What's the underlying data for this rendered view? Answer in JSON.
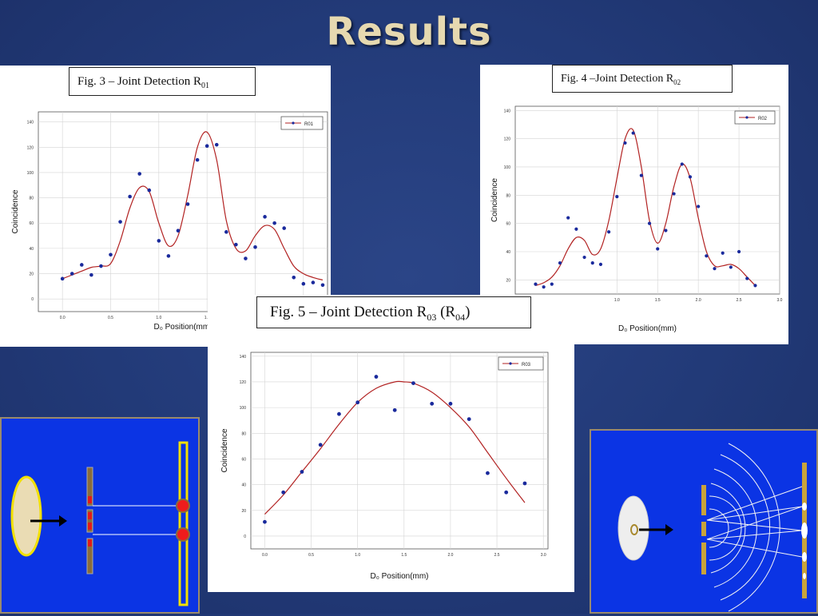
{
  "slide": {
    "title": "Results"
  },
  "chart_data": [
    {
      "id": "fig3",
      "type": "line",
      "caption": {
        "main": "Fig. 3 – Joint Detection R",
        "sub": "01",
        "tail": ""
      },
      "legend": "R01",
      "xlabel": "D₀ Position(mm)",
      "ylabel": "Coincidence",
      "xlim": [
        -0.25,
        2.75
      ],
      "ylim": [
        -10,
        148
      ],
      "xticks": [
        "0.0",
        "0.5",
        "1.0",
        "1.5",
        "2.0",
        "2.5"
      ],
      "yticks": [
        "0",
        "20",
        "40",
        "60",
        "80",
        "100",
        "120",
        "140"
      ],
      "grid": true,
      "legend_position": "top-right",
      "line_color": "#b22222",
      "point_color": "#1a2a9c",
      "points": {
        "x": [
          0.0,
          0.1,
          0.2,
          0.3,
          0.4,
          0.5,
          0.6,
          0.7,
          0.8,
          0.9,
          1.0,
          1.1,
          1.2,
          1.3,
          1.4,
          1.5,
          1.6,
          1.7,
          1.8,
          1.9,
          2.0,
          2.1,
          2.2,
          2.3,
          2.4,
          2.5,
          2.6,
          2.7
        ],
        "y": [
          16,
          20,
          27,
          19,
          26,
          35,
          61,
          81,
          99,
          86,
          46,
          34,
          54,
          75,
          110,
          121,
          122,
          53,
          43,
          32,
          41,
          65,
          60,
          56,
          17,
          12,
          13,
          11
        ]
      },
      "fit": {
        "x": [
          0.0,
          0.1,
          0.2,
          0.3,
          0.4,
          0.5,
          0.6,
          0.7,
          0.8,
          0.9,
          1.0,
          1.1,
          1.2,
          1.3,
          1.4,
          1.5,
          1.6,
          1.7,
          1.8,
          1.9,
          2.0,
          2.1,
          2.2,
          2.3,
          2.4,
          2.5,
          2.6,
          2.7
        ],
        "y": [
          16,
          19,
          22,
          25,
          26,
          28,
          46,
          72,
          88,
          85,
          60,
          42,
          50,
          82,
          120,
          132,
          110,
          62,
          40,
          38,
          50,
          58,
          55,
          40,
          26,
          20,
          17,
          15
        ]
      }
    },
    {
      "id": "fig4",
      "type": "line",
      "caption": {
        "main": "Fig. 4 –Joint Detection R",
        "sub": "02",
        "tail": ""
      },
      "legend": "R02",
      "xlabel": "D₀ Position(mm)",
      "ylabel": "Coincidence",
      "xlim": [
        -0.25,
        3.0
      ],
      "ylim": [
        10,
        143
      ],
      "xticks": [
        "",
        "",
        "",
        "",
        "1.0",
        "1.5",
        "2.0",
        "2.5",
        "3.0"
      ],
      "xtick_values": [
        -1,
        -1,
        -1,
        -1,
        1.0,
        1.5,
        2.0,
        2.5,
        3.0
      ],
      "yticks": [
        "20",
        "40",
        "60",
        "80",
        "100",
        "120",
        "140"
      ],
      "grid": true,
      "legend_position": "top-right",
      "line_color": "#b22222",
      "point_color": "#1a2a9c",
      "points": {
        "x": [
          0.0,
          0.1,
          0.2,
          0.3,
          0.4,
          0.5,
          0.6,
          0.7,
          0.8,
          0.9,
          1.0,
          1.1,
          1.2,
          1.3,
          1.4,
          1.5,
          1.6,
          1.7,
          1.8,
          1.9,
          2.0,
          2.1,
          2.2,
          2.3,
          2.4,
          2.5,
          2.6,
          2.7
        ],
        "y": [
          17,
          15,
          17,
          32,
          64,
          56,
          36,
          32,
          31,
          54,
          79,
          117,
          124,
          94,
          60,
          42,
          55,
          81,
          102,
          93,
          72,
          37,
          28,
          39,
          29,
          40,
          21,
          16
        ],
        "marker_size": 2.3
      },
      "fit": {
        "x": [
          0.0,
          0.1,
          0.2,
          0.3,
          0.4,
          0.5,
          0.6,
          0.7,
          0.8,
          0.9,
          1.0,
          1.1,
          1.2,
          1.3,
          1.4,
          1.5,
          1.6,
          1.7,
          1.8,
          1.9,
          2.0,
          2.1,
          2.2,
          2.3,
          2.4,
          2.5,
          2.6,
          2.7
        ],
        "y": [
          16,
          18,
          22,
          30,
          42,
          50,
          48,
          38,
          42,
          62,
          92,
          120,
          126,
          100,
          62,
          46,
          60,
          86,
          102,
          92,
          64,
          40,
          30,
          30,
          31,
          28,
          22,
          16
        ]
      }
    },
    {
      "id": "fig5",
      "type": "line",
      "caption": {
        "main": "Fig. 5 – Joint Detection R",
        "sub": "03",
        "tail": " (R",
        "sub2": "04",
        "tail2": ")"
      },
      "legend": "R03",
      "xlabel": "D₀ Position(mm)",
      "ylabel": "Coincidence",
      "xlim": [
        -0.15,
        3.05
      ],
      "ylim": [
        -10,
        143
      ],
      "xticks": [
        "0.0",
        "0.5",
        "1.0",
        "1.5",
        "2.0",
        "2.5",
        "3.0"
      ],
      "yticks": [
        "0",
        "20",
        "40",
        "60",
        "80",
        "100",
        "120",
        "140"
      ],
      "grid": true,
      "legend_position": "top-right",
      "line_color": "#b22222",
      "point_color": "#1a2a9c",
      "points": {
        "x": [
          0.0,
          0.2,
          0.4,
          0.6,
          0.8,
          1.0,
          1.2,
          1.4,
          1.6,
          1.8,
          2.0,
          2.2,
          2.4,
          2.6,
          2.8
        ],
        "y": [
          11,
          34,
          50,
          71,
          95,
          104,
          124,
          98,
          119,
          103,
          103,
          91,
          49,
          34,
          41
        ]
      },
      "fit": {
        "x": [
          0.0,
          0.2,
          0.4,
          0.6,
          0.8,
          1.0,
          1.2,
          1.4,
          1.5,
          1.6,
          1.8,
          2.0,
          2.2,
          2.4,
          2.6,
          2.8
        ],
        "y": [
          17,
          32,
          50,
          68,
          87,
          104,
          115,
          120,
          120,
          119,
          112,
          100,
          85,
          65,
          45,
          26
        ]
      }
    }
  ]
}
